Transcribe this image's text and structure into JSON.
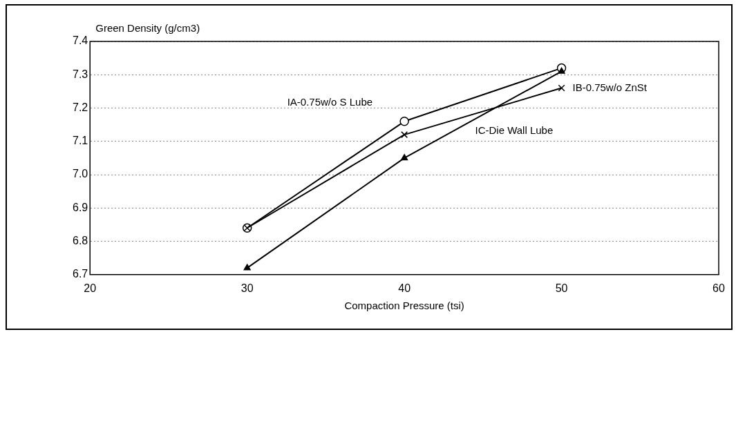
{
  "chart_data": {
    "type": "line",
    "xlabel": "Compaction Pressure (tsi)",
    "ylabel": "Green Density (g/cm3)",
    "x": [
      30,
      40,
      50
    ],
    "series": [
      {
        "name": "IA-0.75w/o S Lube",
        "color": "#000000",
        "marker": "circle",
        "values": [
          6.84,
          7.16,
          7.32
        ]
      },
      {
        "name": "IB-0.75w/o ZnSt",
        "color": "#000000",
        "marker": "cross",
        "values": [
          6.84,
          7.12,
          7.26
        ]
      },
      {
        "name": "IC-Die Wall Lube",
        "color": "#000000",
        "marker": "triangle",
        "values": [
          6.72,
          7.05,
          7.31
        ]
      }
    ],
    "xlim": [
      20,
      60
    ],
    "xticks": [
      20,
      30,
      40,
      50,
      60
    ],
    "ylim": [
      6.7,
      7.4
    ],
    "yticks": [
      6.7,
      6.8,
      6.9,
      {
        "value": 7.0,
        "label": "7.0"
      },
      7.1,
      7.2,
      7.3,
      7.4
    ],
    "grid": "y",
    "legend": false,
    "line_style": "solid"
  }
}
